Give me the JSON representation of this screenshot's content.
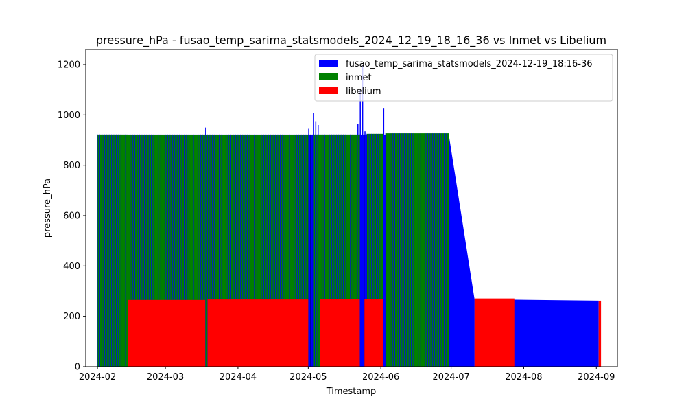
{
  "chart_data": {
    "type": "bar",
    "title": "pressure_hPa - fusao_temp_sarima_statsmodels_2024_12_19_18_16_36 vs Inmet vs Libelium",
    "xlabel": "Timestamp",
    "ylabel": "pressure_hPa",
    "xlim": [
      "2024-01-27",
      "2024-09-10"
    ],
    "ylim": [
      0,
      1260
    ],
    "x_ticks": [
      "2024-02-01",
      "2024-03-01",
      "2024-04-01",
      "2024-05-01",
      "2024-06-01",
      "2024-07-01",
      "2024-08-01",
      "2024-09-01"
    ],
    "x_tick_labels": [
      "2024-02",
      "2024-03",
      "2024-04",
      "2024-05",
      "2024-06",
      "2024-07",
      "2024-08",
      "2024-09"
    ],
    "y_ticks": [
      0,
      200,
      400,
      600,
      800,
      1000,
      1200
    ],
    "y_tick_labels": [
      "0",
      "200",
      "400",
      "600",
      "800",
      "1000",
      "1200"
    ],
    "grid": false,
    "legend_position": "top-right",
    "series": [
      {
        "name": "fusao_temp_sarima_statsmodels_2024-12-19_18:16-36",
        "color": "#0000ff",
        "segments": [
          {
            "start": "2024-02-01",
            "end": "2024-06-30",
            "value": 922
          },
          {
            "start": "2024-06-30",
            "end": "2024-07-11",
            "value_start": 922,
            "value_end": 268
          },
          {
            "start": "2024-07-11",
            "end": "2024-09-02",
            "value_start": 268,
            "value_end": 262
          }
        ],
        "spikes": [
          {
            "date": "2024-03-18",
            "value": 950
          },
          {
            "date": "2024-05-01",
            "value": 945
          },
          {
            "date": "2024-05-03",
            "value": 1008
          },
          {
            "date": "2024-05-04",
            "value": 975
          },
          {
            "date": "2024-05-05",
            "value": 960
          },
          {
            "date": "2024-05-22",
            "value": 965
          },
          {
            "date": "2024-05-23",
            "value": 1100
          },
          {
            "date": "2024-05-24",
            "value": 1200
          },
          {
            "date": "2024-05-25",
            "value": 935
          },
          {
            "date": "2024-06-02",
            "value": 1025
          }
        ]
      },
      {
        "name": "inmet",
        "color": "#008000",
        "segments": [
          {
            "start": "2024-02-01",
            "end": "2024-02-14",
            "value": 922
          },
          {
            "start": "2024-02-14",
            "end": "2024-05-01",
            "value": 920
          },
          {
            "start": "2024-05-03",
            "end": "2024-05-23",
            "value": 922
          },
          {
            "start": "2024-05-26",
            "end": "2024-06-02",
            "value": 925
          },
          {
            "start": "2024-06-03",
            "end": "2024-06-30",
            "value": 927
          }
        ]
      },
      {
        "name": "libelium",
        "color": "#ff0000",
        "segments": [
          {
            "start": "2024-02-14",
            "end": "2024-03-18",
            "value": 265
          },
          {
            "start": "2024-03-19",
            "end": "2024-05-01",
            "value": 267
          },
          {
            "start": "2024-05-06",
            "end": "2024-05-23",
            "value": 268
          },
          {
            "start": "2024-05-25",
            "end": "2024-06-02",
            "value": 270
          },
          {
            "start": "2024-07-11",
            "end": "2024-07-28",
            "value": 271
          },
          {
            "start": "2024-09-02",
            "end": "2024-09-03",
            "value": 262
          }
        ]
      }
    ]
  }
}
